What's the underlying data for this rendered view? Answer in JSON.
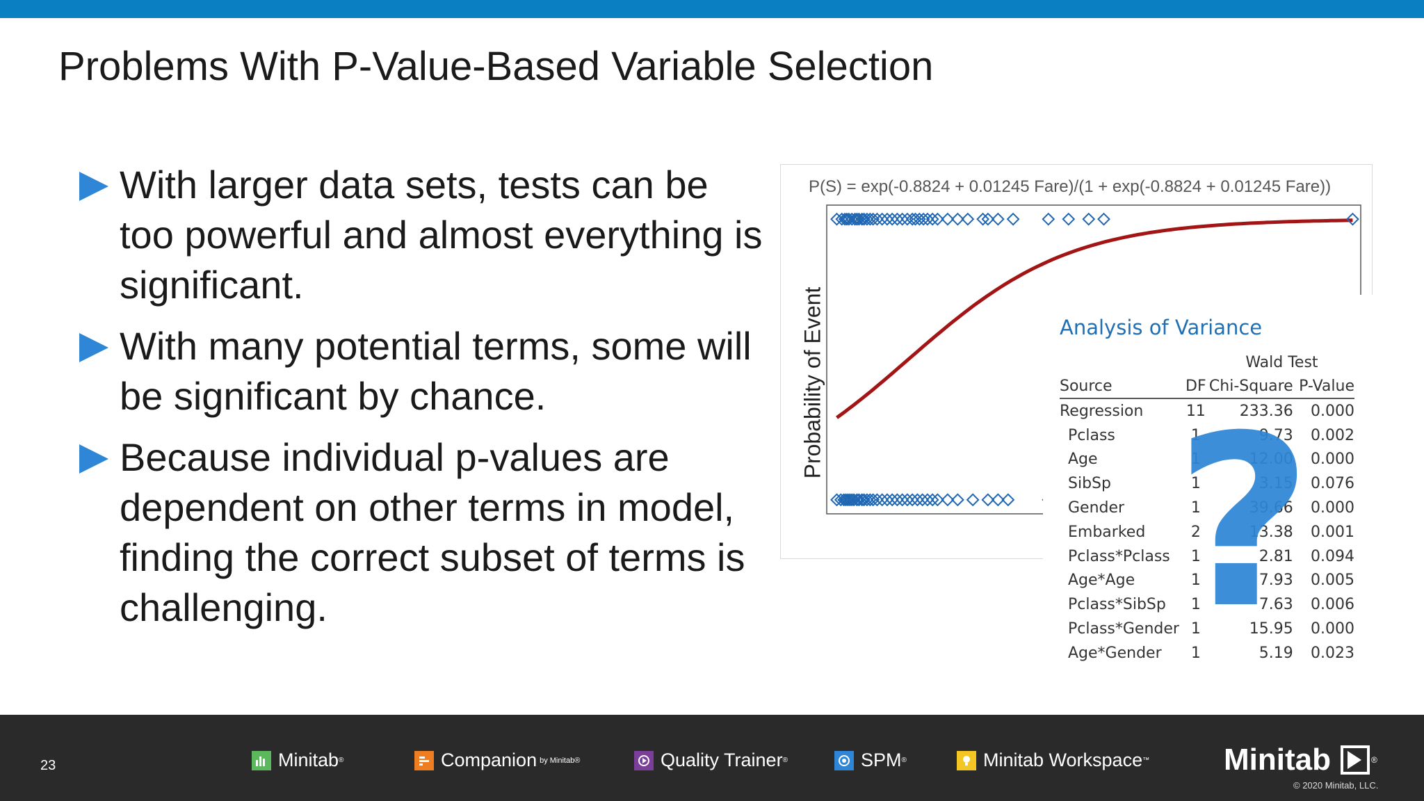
{
  "slide": {
    "title": "Problems With P-Value-Based Variable Selection",
    "bullets": [
      "With larger data sets, tests can be too powerful and almost everything is significant.",
      "With many potential terms, some will be significant by chance.",
      "Because individual p-values are dependent on other terms in model, finding the correct subset of terms is challenging."
    ],
    "page_number": "23"
  },
  "plot": {
    "equation": "P(S) = exp(-0.8824 + 0.01245 Fare)/(1 + exp(-0.8824 + 0.01245 Fare))",
    "ylabel": "Probability of Event"
  },
  "chart_data": {
    "type": "scatter",
    "title": "",
    "xlabel": "",
    "ylabel": "Probability of Event",
    "xlim": [
      -10,
      520
    ],
    "ylim": [
      -0.05,
      1.05
    ],
    "fit": {
      "intercept": -0.8824,
      "slope": 0.01245,
      "x_range": [
        0,
        512
      ]
    },
    "series": [
      {
        "name": "",
        "x": [
          0,
          5,
          8,
          10,
          12,
          15,
          18,
          20,
          22,
          25,
          27,
          30,
          33,
          36,
          40,
          45,
          50,
          55,
          60,
          65,
          70,
          75,
          78,
          82,
          86,
          90,
          95,
          100,
          110,
          120,
          130,
          145,
          150,
          160,
          175,
          210,
          230,
          250,
          265,
          512
        ],
        "y": [
          1,
          1,
          1,
          1,
          1,
          1,
          1,
          1,
          1,
          1,
          1,
          1,
          1,
          1,
          1,
          1,
          1,
          1,
          1,
          1,
          1,
          1,
          1,
          1,
          1,
          1,
          1,
          1,
          1,
          1,
          1,
          1,
          1,
          1,
          1,
          1,
          1,
          1,
          1,
          1
        ]
      },
      {
        "name": "",
        "x": [
          0,
          4,
          7,
          9,
          11,
          13,
          15,
          17,
          20,
          22,
          25,
          27,
          30,
          33,
          36,
          40,
          45,
          50,
          55,
          60,
          65,
          70,
          75,
          80,
          85,
          90,
          95,
          100,
          110,
          120,
          135,
          150,
          160,
          170,
          210
        ],
        "y": [
          0,
          0,
          0,
          0,
          0,
          0,
          0,
          0,
          0,
          0,
          0,
          0,
          0,
          0,
          0,
          0,
          0,
          0,
          0,
          0,
          0,
          0,
          0,
          0,
          0,
          0,
          0,
          0,
          0,
          0,
          0,
          0,
          0,
          0,
          0
        ]
      }
    ]
  },
  "anova": {
    "title": "Analysis of Variance",
    "group_header": "Wald Test",
    "columns": [
      "Source",
      "DF",
      "Chi-Square",
      "P-Value"
    ],
    "rows": [
      [
        "Regression",
        "11",
        "233.36",
        "0.000"
      ],
      [
        "Pclass",
        "1",
        "9.73",
        "0.002"
      ],
      [
        "Age",
        "1",
        "12.00",
        "0.000"
      ],
      [
        "SibSp",
        "1",
        "3.15",
        "0.076"
      ],
      [
        "Gender",
        "1",
        "39.66",
        "0.000"
      ],
      [
        "Embarked",
        "2",
        "13.38",
        "0.001"
      ],
      [
        "Pclass*Pclass",
        "1",
        "2.81",
        "0.094"
      ],
      [
        "Age*Age",
        "1",
        "7.93",
        "0.005"
      ],
      [
        "Pclass*SibSp",
        "1",
        "7.63",
        "0.006"
      ],
      [
        "Pclass*Gender",
        "1",
        "15.95",
        "0.000"
      ],
      [
        "Age*Gender",
        "1",
        "5.19",
        "0.023"
      ]
    ]
  },
  "overlay": {
    "question_mark": "?"
  },
  "footer": {
    "products": [
      {
        "name": "Minitab",
        "suffix": "®",
        "color": "#5cb85c",
        "icon": "bar-chart-icon"
      },
      {
        "name": "Companion",
        "suffix": "by Minitab®",
        "color": "#ef7d22",
        "icon": "companion-icon"
      },
      {
        "name": "Quality Trainer",
        "suffix": "®",
        "color": "#7b3f99",
        "icon": "play-circle-icon"
      },
      {
        "name": "SPM",
        "suffix": "®",
        "color": "#2f86d6",
        "icon": "spiral-icon"
      },
      {
        "name": "Minitab Workspace",
        "suffix": "™",
        "color": "#f3c623",
        "icon": "lightbulb-icon"
      }
    ],
    "brand": "Minitab",
    "brand_suffix": "®",
    "copyright": "© 2020 Minitab, LLC."
  },
  "colors": {
    "top_bar": "#0a7fc2",
    "accent": "#2f86d6",
    "fit_line": "#a31515",
    "footer": "#2a2a2a"
  }
}
